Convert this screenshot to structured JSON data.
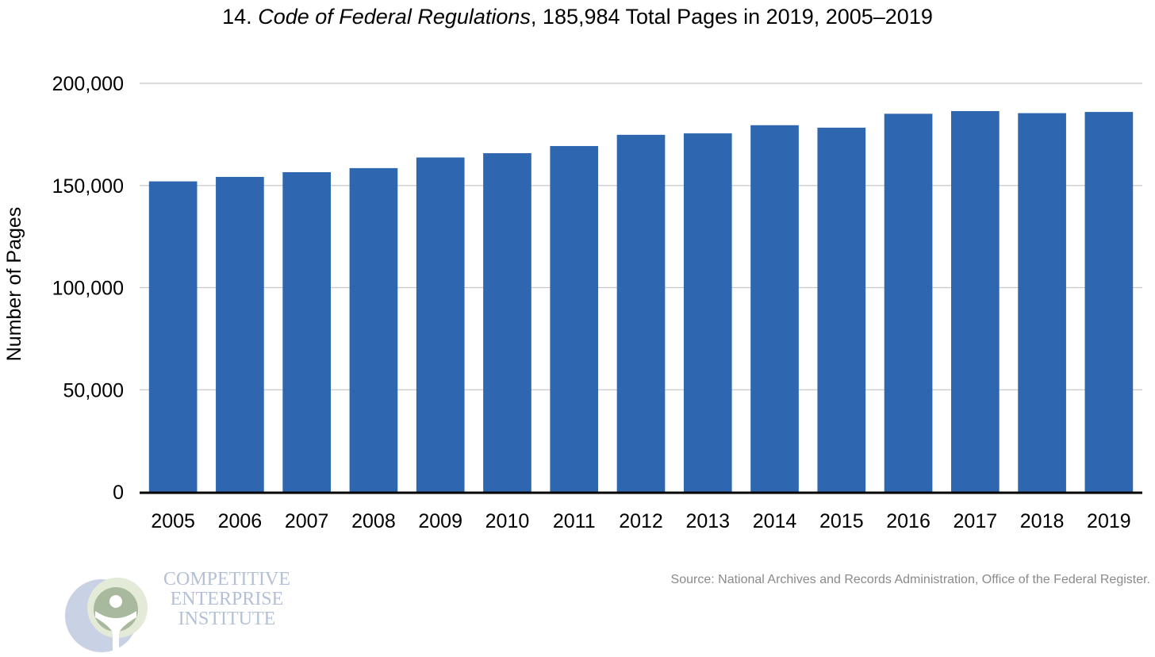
{
  "title": {
    "number": "14.",
    "italic": "Code of Federal Regulations",
    "rest": ", 185,984 Total Pages in 2019, 2005–2019"
  },
  "source": "Source: National Archives and Records Administration, Office of the Federal Register.",
  "logo": {
    "lines": [
      "COMPETITIVE",
      "ENTERPRISE",
      "INSTITUTE"
    ]
  },
  "colors": {
    "bar": "#2e66b0",
    "grid": "#c8c8c8",
    "axis": "#000000"
  },
  "chart_data": {
    "type": "bar",
    "title": "14. Code of Federal Regulations, 185,984 Total Pages in 2019, 2005–2019",
    "xlabel": "",
    "ylabel": "Number of Pages",
    "categories": [
      "2005",
      "2006",
      "2007",
      "2008",
      "2009",
      "2010",
      "2011",
      "2012",
      "2013",
      "2014",
      "2015",
      "2016",
      "2017",
      "2018",
      "2019"
    ],
    "values": [
      152000,
      154200,
      156500,
      158500,
      163700,
      165800,
      169300,
      174800,
      175500,
      179500,
      178300,
      185100,
      186400,
      185400,
      185984
    ],
    "ylim": [
      0,
      200000
    ],
    "yticks": [
      0,
      50000,
      100000,
      150000,
      200000
    ],
    "ytick_labels": [
      "0",
      "50,000",
      "100,000",
      "150,000",
      "200,000"
    ],
    "grid": true,
    "legend": "none"
  }
}
